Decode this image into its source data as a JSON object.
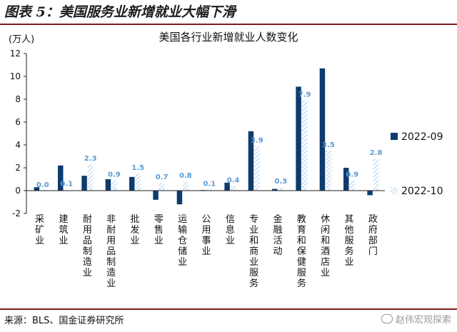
{
  "figure_title": "图表 5：美国服务业新增就业大幅下滑",
  "source": "来源：BLS、国金证券研究所",
  "watermark": "赵伟宏观探索",
  "colors": {
    "series1": "#0d3b6e",
    "series2_hatch": "#b8d4ee",
    "data_label": "#5b9bd5",
    "rule": "#7f1d1d"
  },
  "chart_data": {
    "type": "bar",
    "title": "美国各行业新增就业人数变化",
    "ylabel": "(万人)",
    "ylim": [
      -2,
      12
    ],
    "yticks": [
      -2,
      0,
      2,
      4,
      6,
      8,
      10,
      12
    ],
    "grid": false,
    "legend_position": "right",
    "categories": [
      "采矿业",
      "建筑业",
      "耐用品制造业",
      "非耐用品制造业",
      "批发业",
      "零售业",
      "运输仓储业",
      "公用事业",
      "信息业",
      "专业和商业服务",
      "金融活动",
      "教育和保健服务",
      "休闲和酒店业",
      "其他服务业",
      "政府部门"
    ],
    "series": [
      {
        "name": "2022-09",
        "values": [
          0.3,
          2.2,
          1.3,
          1.0,
          1.2,
          -0.8,
          -1.2,
          0.05,
          0.7,
          5.2,
          0.15,
          9.1,
          10.7,
          2.0,
          -0.4
        ]
      },
      {
        "name": "2022-10",
        "values": [
          0.0,
          0.1,
          2.3,
          0.9,
          1.5,
          0.7,
          0.8,
          0.1,
          0.4,
          3.9,
          0.3,
          7.9,
          3.5,
          0.9,
          2.8
        ]
      }
    ],
    "data_labels": [
      "0.0",
      "0.1",
      "2.3",
      "0.9",
      "1.5",
      "0.7",
      "0.8",
      "0.1",
      "0.4",
      "3.9",
      "0.3",
      "7.9",
      "3.5",
      "0.9",
      "2.8"
    ]
  }
}
